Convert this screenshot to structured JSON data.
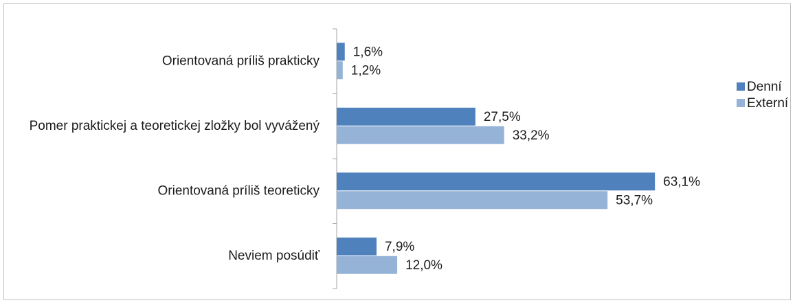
{
  "chart_data": {
    "type": "barh",
    "categories": [
      "Orientovaná príliš prakticky",
      "Pomer praktickej a teoretickej zložky bol vyvážený",
      "Orientovaná príliš teoreticky",
      "Neviem posúdiť"
    ],
    "series": [
      {
        "name": "Denní",
        "color": "#4f81bd",
        "values": [
          1.6,
          27.5,
          63.1,
          7.9
        ],
        "value_labels": [
          "1,6%",
          "27,5%",
          "63,1%",
          "7,9%"
        ]
      },
      {
        "name": "Externí",
        "color": "#95b3d7",
        "values": [
          1.2,
          33.2,
          53.7,
          12.0
        ],
        "value_labels": [
          "1,2%",
          "33,2%",
          "53,7%",
          "12,0%"
        ]
      }
    ],
    "xlim": [
      0,
      70
    ],
    "legend": "right"
  }
}
